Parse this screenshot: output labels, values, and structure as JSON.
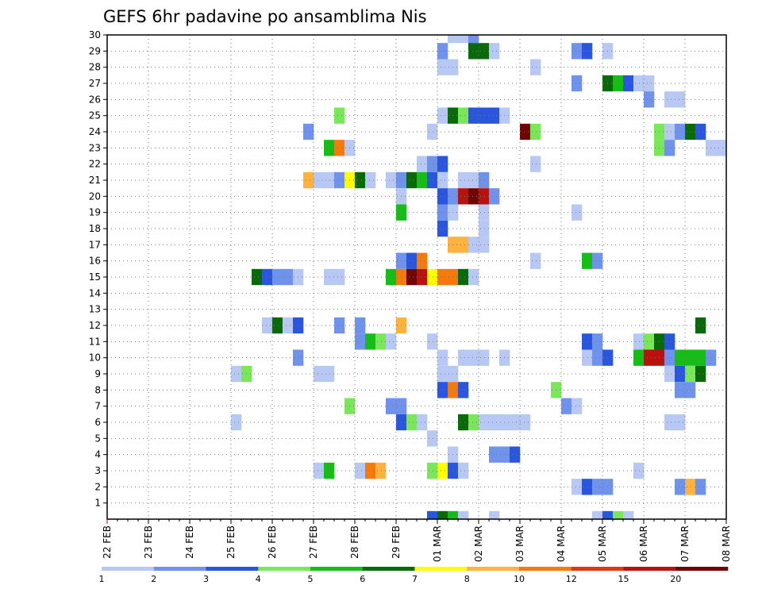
{
  "chart_data": {
    "type": "heatmap",
    "title": "GEFS 6hr padavine po ansamblima Nis",
    "xlabel": "",
    "ylabel": "",
    "grid": true,
    "ylim": [
      0,
      30
    ],
    "y_ticks": [
      1,
      2,
      3,
      4,
      5,
      6,
      7,
      8,
      9,
      10,
      11,
      12,
      13,
      14,
      15,
      16,
      17,
      18,
      19,
      20,
      21,
      22,
      23,
      24,
      25,
      26,
      27,
      28,
      29,
      30
    ],
    "x_ticks": [
      "22 FEB",
      "23 FEB",
      "24 FEB",
      "25 FEB",
      "26 FEB",
      "27 FEB",
      "28 FEB",
      "29 FEB",
      "01 MAR",
      "02 MAR",
      "03 MAR",
      "04 MAR",
      "05 MAR",
      "06 MAR",
      "07 MAR",
      "08 MAR"
    ],
    "x_step_hours": 6,
    "colorbar": {
      "labels": [
        "1",
        "2",
        "3",
        "4",
        "5",
        "6",
        "7",
        "8",
        "10",
        "12",
        "15",
        "20"
      ],
      "levels": [
        1,
        2,
        3,
        4,
        5,
        6,
        7,
        8,
        10,
        12,
        15,
        20
      ],
      "colors": [
        "#b8c8f5",
        "#6f93ec",
        "#2a56dd",
        "#7ae65a",
        "#16bd16",
        "#0a6a0a",
        "#ffff00",
        "#ffb23d",
        "#f57a0e",
        "#e33512",
        "#b8120e",
        "#6e0606"
      ]
    },
    "cells": [
      {
        "member": 30,
        "step": 33,
        "value": 1
      },
      {
        "member": 30,
        "step": 34,
        "value": 1
      },
      {
        "member": 30,
        "step": 35,
        "value": 2
      },
      {
        "member": 29,
        "step": 32,
        "value": 2
      },
      {
        "member": 29,
        "step": 35,
        "value": 6
      },
      {
        "member": 29,
        "step": 36,
        "value": 6
      },
      {
        "member": 29,
        "step": 37,
        "value": 1
      },
      {
        "member": 29,
        "step": 45,
        "value": 2
      },
      {
        "member": 29,
        "step": 46,
        "value": 3
      },
      {
        "member": 29,
        "step": 48,
        "value": 1
      },
      {
        "member": 28,
        "step": 32,
        "value": 1
      },
      {
        "member": 28,
        "step": 33,
        "value": 1
      },
      {
        "member": 28,
        "step": 41,
        "value": 1
      },
      {
        "member": 27,
        "step": 45,
        "value": 2
      },
      {
        "member": 27,
        "step": 48,
        "value": 6
      },
      {
        "member": 27,
        "step": 49,
        "value": 5
      },
      {
        "member": 27,
        "step": 50,
        "value": 3
      },
      {
        "member": 27,
        "step": 51,
        "value": 1
      },
      {
        "member": 27,
        "step": 52,
        "value": 1
      },
      {
        "member": 26,
        "step": 52,
        "value": 2
      },
      {
        "member": 26,
        "step": 54,
        "value": 1
      },
      {
        "member": 26,
        "step": 55,
        "value": 1
      },
      {
        "member": 25,
        "step": 22,
        "value": 4
      },
      {
        "member": 25,
        "step": 32,
        "value": 1
      },
      {
        "member": 25,
        "step": 33,
        "value": 6
      },
      {
        "member": 25,
        "step": 34,
        "value": 4
      },
      {
        "member": 25,
        "step": 35,
        "value": 3
      },
      {
        "member": 25,
        "step": 36,
        "value": 3
      },
      {
        "member": 25,
        "step": 37,
        "value": 3
      },
      {
        "member": 25,
        "step": 38,
        "value": 1
      },
      {
        "member": 24,
        "step": 19,
        "value": 2
      },
      {
        "member": 24,
        "step": 31,
        "value": 1
      },
      {
        "member": 24,
        "step": 40,
        "value": 20
      },
      {
        "member": 24,
        "step": 41,
        "value": 4
      },
      {
        "member": 24,
        "step": 53,
        "value": 4
      },
      {
        "member": 24,
        "step": 54,
        "value": 1
      },
      {
        "member": 24,
        "step": 55,
        "value": 2
      },
      {
        "member": 24,
        "step": 56,
        "value": 6
      },
      {
        "member": 24,
        "step": 57,
        "value": 3
      },
      {
        "member": 23,
        "step": 21,
        "value": 5
      },
      {
        "member": 23,
        "step": 22,
        "value": 10
      },
      {
        "member": 23,
        "step": 23,
        "value": 1
      },
      {
        "member": 23,
        "step": 53,
        "value": 4
      },
      {
        "member": 23,
        "step": 54,
        "value": 2
      },
      {
        "member": 23,
        "step": 58,
        "value": 1
      },
      {
        "member": 23,
        "step": 59,
        "value": 1
      },
      {
        "member": 22,
        "step": 30,
        "value": 1
      },
      {
        "member": 22,
        "step": 31,
        "value": 2
      },
      {
        "member": 22,
        "step": 32,
        "value": 3
      },
      {
        "member": 22,
        "step": 41,
        "value": 1
      },
      {
        "member": 21,
        "step": 19,
        "value": 8
      },
      {
        "member": 21,
        "step": 20,
        "value": 1
      },
      {
        "member": 21,
        "step": 21,
        "value": 1
      },
      {
        "member": 21,
        "step": 22,
        "value": 2
      },
      {
        "member": 21,
        "step": 23,
        "value": 7
      },
      {
        "member": 21,
        "step": 24,
        "value": 6
      },
      {
        "member": 21,
        "step": 25,
        "value": 1
      },
      {
        "member": 21,
        "step": 27,
        "value": 1
      },
      {
        "member": 21,
        "step": 28,
        "value": 2
      },
      {
        "member": 21,
        "step": 29,
        "value": 6
      },
      {
        "member": 21,
        "step": 30,
        "value": 5
      },
      {
        "member": 21,
        "step": 31,
        "value": 3
      },
      {
        "member": 21,
        "step": 32,
        "value": 1
      },
      {
        "member": 21,
        "step": 34,
        "value": 1
      },
      {
        "member": 21,
        "step": 35,
        "value": 1
      },
      {
        "member": 21,
        "step": 36,
        "value": 2
      },
      {
        "member": 20,
        "step": 28,
        "value": 1
      },
      {
        "member": 20,
        "step": 32,
        "value": 3
      },
      {
        "member": 20,
        "step": 33,
        "value": 2
      },
      {
        "member": 20,
        "step": 34,
        "value": 15
      },
      {
        "member": 20,
        "step": 35,
        "value": 20
      },
      {
        "member": 20,
        "step": 36,
        "value": 15
      },
      {
        "member": 20,
        "step": 37,
        "value": 2
      },
      {
        "member": 19,
        "step": 28,
        "value": 5
      },
      {
        "member": 19,
        "step": 32,
        "value": 2
      },
      {
        "member": 19,
        "step": 33,
        "value": 1
      },
      {
        "member": 19,
        "step": 36,
        "value": 1
      },
      {
        "member": 19,
        "step": 45,
        "value": 1
      },
      {
        "member": 18,
        "step": 32,
        "value": 3
      },
      {
        "member": 18,
        "step": 36,
        "value": 1
      },
      {
        "member": 17,
        "step": 33,
        "value": 8
      },
      {
        "member": 17,
        "step": 34,
        "value": 8
      },
      {
        "member": 17,
        "step": 35,
        "value": 1
      },
      {
        "member": 17,
        "step": 36,
        "value": 1
      },
      {
        "member": 16,
        "step": 28,
        "value": 2
      },
      {
        "member": 16,
        "step": 29,
        "value": 3
      },
      {
        "member": 16,
        "step": 30,
        "value": 10
      },
      {
        "member": 16,
        "step": 41,
        "value": 1
      },
      {
        "member": 16,
        "step": 46,
        "value": 5
      },
      {
        "member": 16,
        "step": 47,
        "value": 2
      },
      {
        "member": 15,
        "step": 14,
        "value": 6
      },
      {
        "member": 15,
        "step": 15,
        "value": 3
      },
      {
        "member": 15,
        "step": 16,
        "value": 2
      },
      {
        "member": 15,
        "step": 17,
        "value": 2
      },
      {
        "member": 15,
        "step": 18,
        "value": 1
      },
      {
        "member": 15,
        "step": 21,
        "value": 1
      },
      {
        "member": 15,
        "step": 22,
        "value": 1
      },
      {
        "member": 15,
        "step": 27,
        "value": 5
      },
      {
        "member": 15,
        "step": 28,
        "value": 10
      },
      {
        "member": 15,
        "step": 29,
        "value": 20
      },
      {
        "member": 15,
        "step": 30,
        "value": 15
      },
      {
        "member": 15,
        "step": 31,
        "value": 7
      },
      {
        "member": 15,
        "step": 32,
        "value": 10
      },
      {
        "member": 15,
        "step": 33,
        "value": 10
      },
      {
        "member": 15,
        "step": 34,
        "value": 6
      },
      {
        "member": 15,
        "step": 35,
        "value": 1
      },
      {
        "member": 12,
        "step": 15,
        "value": 1
      },
      {
        "member": 12,
        "step": 16,
        "value": 6
      },
      {
        "member": 12,
        "step": 17,
        "value": 1
      },
      {
        "member": 12,
        "step": 18,
        "value": 3
      },
      {
        "member": 12,
        "step": 22,
        "value": 2
      },
      {
        "member": 12,
        "step": 24,
        "value": 2
      },
      {
        "member": 12,
        "step": 28,
        "value": 8
      },
      {
        "member": 12,
        "step": 57,
        "value": 6
      },
      {
        "member": 11,
        "step": 24,
        "value": 2
      },
      {
        "member": 11,
        "step": 25,
        "value": 5
      },
      {
        "member": 11,
        "step": 26,
        "value": 4
      },
      {
        "member": 11,
        "step": 27,
        "value": 1
      },
      {
        "member": 11,
        "step": 31,
        "value": 1
      },
      {
        "member": 11,
        "step": 46,
        "value": 3
      },
      {
        "member": 11,
        "step": 47,
        "value": 2
      },
      {
        "member": 11,
        "step": 51,
        "value": 1
      },
      {
        "member": 11,
        "step": 52,
        "value": 4
      },
      {
        "member": 11,
        "step": 53,
        "value": 6
      },
      {
        "member": 11,
        "step": 54,
        "value": 3
      },
      {
        "member": 10,
        "step": 18,
        "value": 2
      },
      {
        "member": 10,
        "step": 32,
        "value": 1
      },
      {
        "member": 10,
        "step": 34,
        "value": 1
      },
      {
        "member": 10,
        "step": 35,
        "value": 1
      },
      {
        "member": 10,
        "step": 36,
        "value": 1
      },
      {
        "member": 10,
        "step": 38,
        "value": 1
      },
      {
        "member": 10,
        "step": 46,
        "value": 1
      },
      {
        "member": 10,
        "step": 47,
        "value": 2
      },
      {
        "member": 10,
        "step": 48,
        "value": 3
      },
      {
        "member": 10,
        "step": 51,
        "value": 5
      },
      {
        "member": 10,
        "step": 52,
        "value": 15
      },
      {
        "member": 10,
        "step": 53,
        "value": 15
      },
      {
        "member": 10,
        "step": 54,
        "value": 2
      },
      {
        "member": 10,
        "step": 55,
        "value": 5
      },
      {
        "member": 10,
        "step": 56,
        "value": 5
      },
      {
        "member": 10,
        "step": 57,
        "value": 5
      },
      {
        "member": 10,
        "step": 58,
        "value": 2
      },
      {
        "member": 9,
        "step": 12,
        "value": 1
      },
      {
        "member": 9,
        "step": 13,
        "value": 4
      },
      {
        "member": 9,
        "step": 20,
        "value": 1
      },
      {
        "member": 9,
        "step": 21,
        "value": 1
      },
      {
        "member": 9,
        "step": 32,
        "value": 1
      },
      {
        "member": 9,
        "step": 33,
        "value": 1
      },
      {
        "member": 9,
        "step": 54,
        "value": 1
      },
      {
        "member": 9,
        "step": 55,
        "value": 3
      },
      {
        "member": 9,
        "step": 56,
        "value": 4
      },
      {
        "member": 9,
        "step": 57,
        "value": 6
      },
      {
        "member": 8,
        "step": 32,
        "value": 3
      },
      {
        "member": 8,
        "step": 33,
        "value": 10
      },
      {
        "member": 8,
        "step": 34,
        "value": 3
      },
      {
        "member": 8,
        "step": 43,
        "value": 4
      },
      {
        "member": 8,
        "step": 55,
        "value": 2
      },
      {
        "member": 8,
        "step": 56,
        "value": 2
      },
      {
        "member": 7,
        "step": 23,
        "value": 4
      },
      {
        "member": 7,
        "step": 27,
        "value": 2
      },
      {
        "member": 7,
        "step": 28,
        "value": 2
      },
      {
        "member": 7,
        "step": 44,
        "value": 2
      },
      {
        "member": 7,
        "step": 45,
        "value": 1
      },
      {
        "member": 6,
        "step": 12,
        "value": 1
      },
      {
        "member": 6,
        "step": 28,
        "value": 3
      },
      {
        "member": 6,
        "step": 29,
        "value": 4
      },
      {
        "member": 6,
        "step": 30,
        "value": 1
      },
      {
        "member": 6,
        "step": 34,
        "value": 6
      },
      {
        "member": 6,
        "step": 35,
        "value": 4
      },
      {
        "member": 6,
        "step": 36,
        "value": 1
      },
      {
        "member": 6,
        "step": 37,
        "value": 1
      },
      {
        "member": 6,
        "step": 38,
        "value": 1
      },
      {
        "member": 6,
        "step": 39,
        "value": 1
      },
      {
        "member": 6,
        "step": 40,
        "value": 1
      },
      {
        "member": 6,
        "step": 54,
        "value": 1
      },
      {
        "member": 6,
        "step": 55,
        "value": 1
      },
      {
        "member": 5,
        "step": 31,
        "value": 1
      },
      {
        "member": 4,
        "step": 33,
        "value": 1
      },
      {
        "member": 4,
        "step": 37,
        "value": 2
      },
      {
        "member": 4,
        "step": 38,
        "value": 2
      },
      {
        "member": 4,
        "step": 39,
        "value": 3
      },
      {
        "member": 3,
        "step": 20,
        "value": 1
      },
      {
        "member": 3,
        "step": 21,
        "value": 5
      },
      {
        "member": 3,
        "step": 24,
        "value": 1
      },
      {
        "member": 3,
        "step": 25,
        "value": 10
      },
      {
        "member": 3,
        "step": 26,
        "value": 8
      },
      {
        "member": 3,
        "step": 31,
        "value": 4
      },
      {
        "member": 3,
        "step": 32,
        "value": 7
      },
      {
        "member": 3,
        "step": 33,
        "value": 3
      },
      {
        "member": 3,
        "step": 34,
        "value": 1
      },
      {
        "member": 3,
        "step": 51,
        "value": 1
      },
      {
        "member": 2,
        "step": 45,
        "value": 1
      },
      {
        "member": 2,
        "step": 46,
        "value": 3
      },
      {
        "member": 2,
        "step": 47,
        "value": 2
      },
      {
        "member": 2,
        "step": 48,
        "value": 2
      },
      {
        "member": 2,
        "step": 55,
        "value": 2
      },
      {
        "member": 2,
        "step": 56,
        "value": 8
      },
      {
        "member": 2,
        "step": 57,
        "value": 2
      },
      {
        "member": 0,
        "step": 31,
        "value": 3
      },
      {
        "member": 0,
        "step": 32,
        "value": 6
      },
      {
        "member": 0,
        "step": 33,
        "value": 5
      },
      {
        "member": 0,
        "step": 34,
        "value": 1
      },
      {
        "member": 0,
        "step": 37,
        "value": 1
      },
      {
        "member": 0,
        "step": 47,
        "value": 1
      },
      {
        "member": 0,
        "step": 48,
        "value": 3
      },
      {
        "member": 0,
        "step": 49,
        "value": 4
      },
      {
        "member": 0,
        "step": 50,
        "value": 1
      }
    ]
  }
}
